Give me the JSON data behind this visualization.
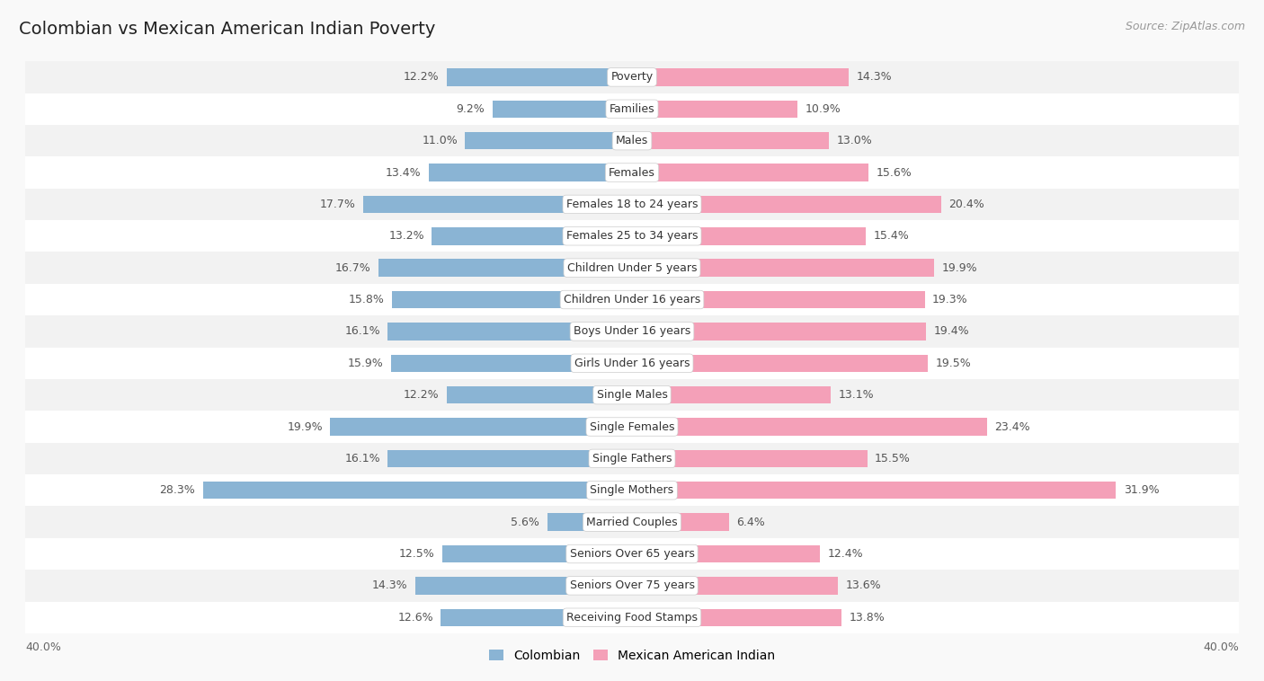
{
  "title": "Colombian vs Mexican American Indian Poverty",
  "source": "Source: ZipAtlas.com",
  "categories": [
    "Poverty",
    "Families",
    "Males",
    "Females",
    "Females 18 to 24 years",
    "Females 25 to 34 years",
    "Children Under 5 years",
    "Children Under 16 years",
    "Boys Under 16 years",
    "Girls Under 16 years",
    "Single Males",
    "Single Females",
    "Single Fathers",
    "Single Mothers",
    "Married Couples",
    "Seniors Over 65 years",
    "Seniors Over 75 years",
    "Receiving Food Stamps"
  ],
  "colombian": [
    12.2,
    9.2,
    11.0,
    13.4,
    17.7,
    13.2,
    16.7,
    15.8,
    16.1,
    15.9,
    12.2,
    19.9,
    16.1,
    28.3,
    5.6,
    12.5,
    14.3,
    12.6
  ],
  "mexican_indian": [
    14.3,
    10.9,
    13.0,
    15.6,
    20.4,
    15.4,
    19.9,
    19.3,
    19.4,
    19.5,
    13.1,
    23.4,
    15.5,
    31.9,
    6.4,
    12.4,
    13.6,
    13.8
  ],
  "colombian_color": "#8ab4d4",
  "mexican_indian_color": "#f4a0b8",
  "bg_even": "#f2f2f2",
  "bg_odd": "#ffffff",
  "max_val": 40.0,
  "legend_colombian": "Colombian",
  "legend_mexican": "Mexican American Indian",
  "title_fontsize": 14,
  "source_fontsize": 9,
  "label_fontsize": 9,
  "value_fontsize": 9,
  "bar_height": 0.55,
  "fig_bg": "#f9f9f9"
}
